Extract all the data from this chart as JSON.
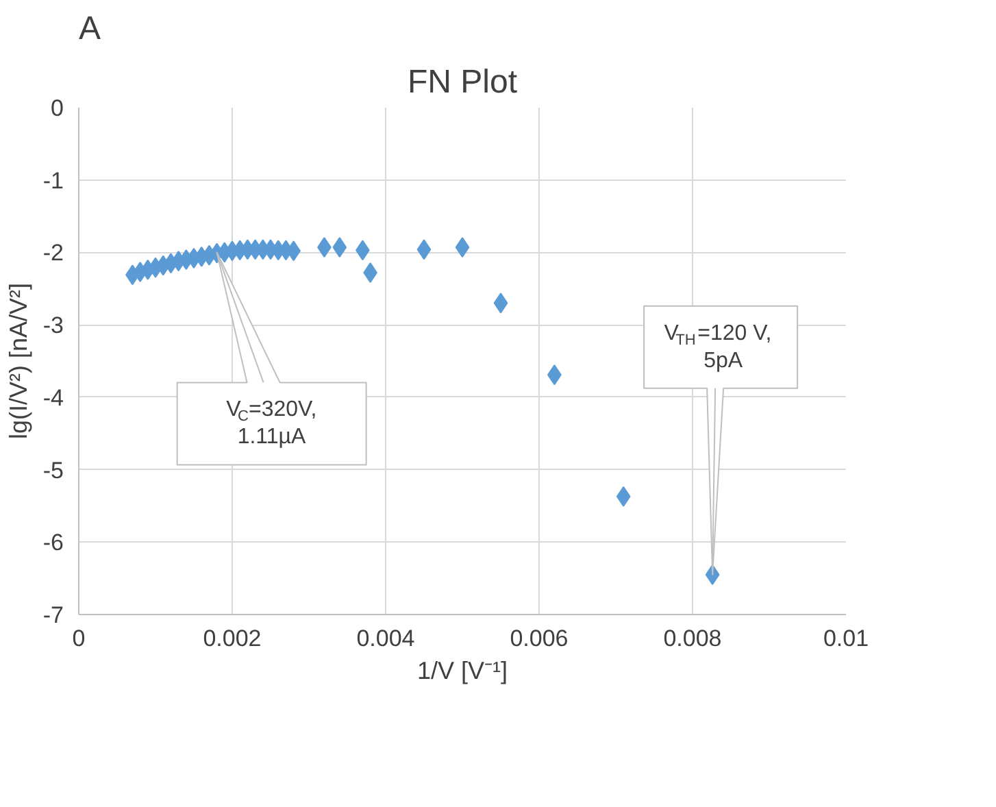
{
  "chart_data": {
    "type": "scatter",
    "title": "FN Plot",
    "xlabel": "1/V [V⁻¹]",
    "ylabel": "lg(I/V²) [nA/V²]",
    "annotations": [
      "A",
      {
        "text": "V$_{C}$=320V,1.11µA",
        "x": 0.0018,
        "y": -2.0
      },
      {
        "text": "V$_{TH}$=120 V, 5pA",
        "x": 0.00826,
        "y": -6.45
      }
    ],
    "x": [
      0.0007,
      0.0008,
      0.0009,
      0.001,
      0.0011,
      0.0012,
      0.0013,
      0.0014,
      0.0015,
      0.0016,
      0.0017,
      0.0018,
      0.0019,
      0.002,
      0.0021,
      0.0022,
      0.0023,
      0.0024,
      0.0025,
      0.0026,
      0.0027,
      0.0028,
      0.0032,
      0.0034,
      0.0037,
      0.0038,
      0.0045,
      0.005,
      0.0055,
      0.0062,
      0.0071,
      0.00826
    ],
    "series": [
      {
        "color": "#5b9bd5",
        "values": [
          -2.31,
          -2.27,
          -2.24,
          -2.21,
          -2.18,
          -2.15,
          -2.12,
          -2.1,
          -2.08,
          -2.06,
          -2.04,
          -2.01,
          -2.0,
          -1.98,
          -1.97,
          -1.96,
          -1.96,
          -1.96,
          -1.96,
          -1.97,
          -1.97,
          -1.98,
          -1.93,
          -1.93,
          -1.97,
          -2.28,
          -1.96,
          -1.93,
          -2.7,
          -3.69,
          -5.37,
          -6.45
        ]
      }
    ],
    "marker": "diamond",
    "grid": true,
    "xlim": [
      0,
      0.01
    ],
    "xticks": [
      0,
      0.002,
      0.004,
      0.006,
      0.008,
      0.01
    ],
    "ylim": [
      -7,
      0
    ],
    "yticks": [
      -7,
      -6,
      -5,
      -4,
      -3,
      -2,
      -1,
      0
    ]
  }
}
